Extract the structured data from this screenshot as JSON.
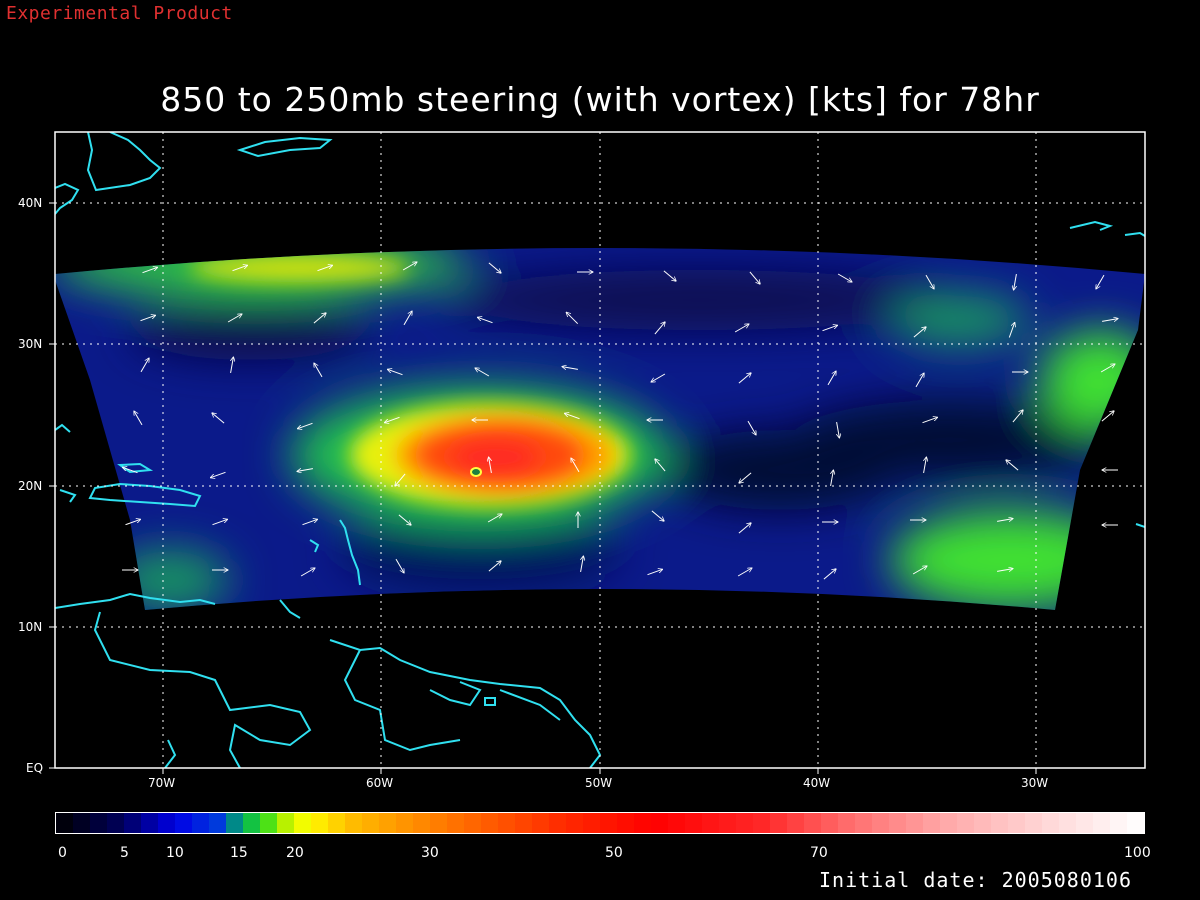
{
  "product_tag": "Experimental Product",
  "title": "850 to 250mb steering (with vortex) [kts] for 78hr",
  "initial_date": "Initial date: 2005080106",
  "map": {
    "lon_labels": [
      "70W",
      "60W",
      "50W",
      "40W",
      "30W"
    ],
    "lat_labels": [
      "40N",
      "30N",
      "20N",
      "10N",
      "EQ"
    ],
    "lon_range": [
      -75,
      -25
    ],
    "lat_range": [
      0,
      45
    ],
    "storm_center": {
      "lon": -55.5,
      "lat": 21
    }
  },
  "colorbar": {
    "tick_labels": [
      "0",
      "5",
      "10",
      "15",
      "20",
      "30",
      "50",
      "70",
      "100"
    ],
    "units": "kts"
  },
  "colors": {
    "coast": "#30e0f0",
    "tag": "#e03030",
    "grid": "#ffffff"
  }
}
